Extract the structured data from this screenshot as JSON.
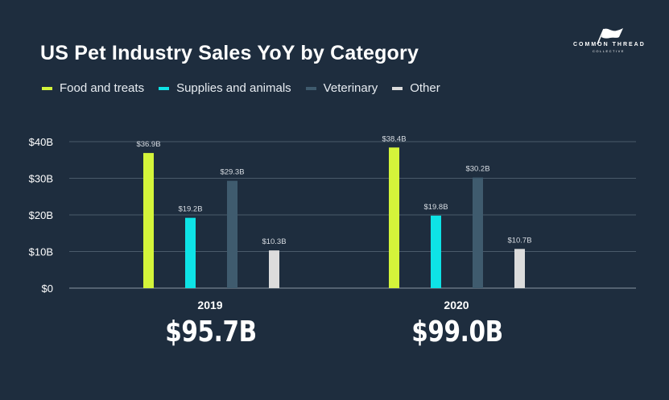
{
  "title": "US Pet Industry Sales YoY by Category",
  "logo": {
    "brand": "COMMON THREAD",
    "sub": "COLLECTIVE"
  },
  "colors": {
    "background": "#1e2d3e",
    "food": "#d4f43a",
    "supplies": "#0ee3e6",
    "veterinary": "#3f5b6e",
    "other": "#dcdcdc",
    "grid": "#4a5a6a"
  },
  "chart_data": {
    "type": "bar",
    "title": "US Pet Industry Sales YoY by Category",
    "categories": [
      "2019",
      "2020"
    ],
    "series": [
      {
        "name": "Food and treats",
        "values": [
          36.9,
          38.4
        ],
        "labels": [
          "$36.9B",
          "$38.4B"
        ],
        "color": "#d4f43a"
      },
      {
        "name": "Supplies and animals",
        "values": [
          19.2,
          19.8
        ],
        "labels": [
          "$19.2B",
          "$19.8B"
        ],
        "color": "#0ee3e6"
      },
      {
        "name": "Veterinary",
        "values": [
          29.3,
          30.2
        ],
        "labels": [
          "$29.3B",
          "$30.2B"
        ],
        "color": "#3f5b6e"
      },
      {
        "name": "Other",
        "values": [
          10.3,
          10.7
        ],
        "labels": [
          "$10.3B",
          "$10.7B"
        ],
        "color": "#dcdcdc"
      }
    ],
    "totals": [
      "$95.7B",
      "$99.0B"
    ],
    "ylim": [
      0,
      40
    ],
    "yticks": [
      0,
      10,
      20,
      30,
      40
    ],
    "ytick_labels": [
      "$0",
      "$10B",
      "$20B",
      "$30B",
      "$40B"
    ],
    "grid": true,
    "legend": "top-left",
    "xlabel": "",
    "ylabel": ""
  }
}
